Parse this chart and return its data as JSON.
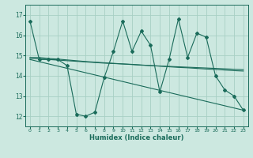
{
  "title": "",
  "xlabel": "Humidex (Indice chaleur)",
  "xlim": [
    -0.5,
    23.5
  ],
  "ylim": [
    11.5,
    17.5
  ],
  "yticks": [
    12,
    13,
    14,
    15,
    16,
    17
  ],
  "xticks": [
    0,
    1,
    2,
    3,
    4,
    5,
    6,
    7,
    8,
    9,
    10,
    11,
    12,
    13,
    14,
    15,
    16,
    17,
    18,
    19,
    20,
    21,
    22,
    23
  ],
  "bg_color": "#cce8e0",
  "line_color": "#1a6b5a",
  "grid_color": "#a8cfc4",
  "line1_x": [
    0,
    1,
    2,
    3,
    4,
    5,
    6,
    7,
    8,
    9,
    10,
    11,
    12,
    13,
    14,
    15,
    16,
    17,
    18,
    19,
    20,
    21,
    22,
    23
  ],
  "line1_y": [
    16.7,
    14.8,
    14.8,
    14.8,
    14.5,
    12.1,
    12.0,
    12.2,
    13.9,
    15.2,
    16.7,
    15.2,
    16.2,
    15.5,
    13.2,
    14.8,
    16.8,
    14.9,
    16.1,
    15.9,
    14.0,
    13.3,
    13.0,
    12.3
  ],
  "line2_x": [
    0,
    1,
    2,
    3,
    4,
    5,
    6,
    7,
    8,
    9,
    10,
    11,
    12,
    13,
    14,
    15,
    16,
    17,
    18,
    19,
    20,
    21,
    22,
    23
  ],
  "line2_y": [
    14.9,
    14.9,
    14.85,
    14.82,
    14.78,
    14.74,
    14.7,
    14.67,
    14.64,
    14.61,
    14.58,
    14.56,
    14.53,
    14.5,
    14.48,
    14.46,
    14.44,
    14.42,
    14.4,
    14.38,
    14.36,
    14.34,
    14.32,
    14.3
  ],
  "line3_x": [
    0,
    1,
    2,
    3,
    4,
    5,
    6,
    7,
    8,
    9,
    10,
    11,
    12,
    13,
    14,
    15,
    16,
    17,
    18,
    19,
    20,
    21,
    22,
    23
  ],
  "line3_y": [
    14.85,
    14.83,
    14.8,
    14.77,
    14.74,
    14.71,
    14.68,
    14.65,
    14.62,
    14.6,
    14.58,
    14.55,
    14.52,
    14.5,
    14.47,
    14.44,
    14.41,
    14.39,
    14.36,
    14.33,
    14.31,
    14.28,
    14.25,
    14.23
  ],
  "line4_x": [
    0,
    23
  ],
  "line4_y": [
    14.8,
    12.3
  ]
}
